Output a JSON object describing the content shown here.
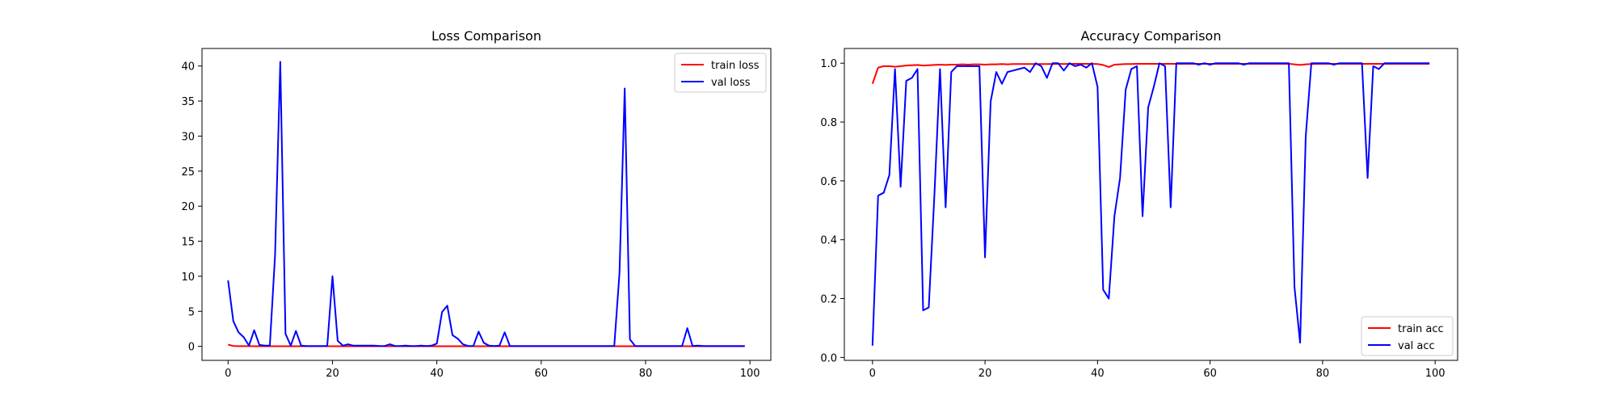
{
  "chart_data": [
    {
      "type": "line",
      "title": "Loss Comparison",
      "xlabel": "",
      "ylabel": "",
      "xlim": [
        -5,
        104
      ],
      "ylim": [
        -2,
        42.5
      ],
      "xticks": [
        0,
        20,
        40,
        60,
        80,
        100
      ],
      "yticks": [
        0,
        5,
        10,
        15,
        20,
        25,
        30,
        35,
        40
      ],
      "legend": "top-right",
      "grid": false,
      "series": [
        {
          "name": "train loss",
          "color": "#ff0000",
          "x": [
            0,
            1,
            2,
            3,
            4,
            5,
            6,
            7,
            8,
            9,
            10,
            11,
            12,
            13,
            14,
            15,
            16,
            17,
            18,
            19,
            20,
            21,
            22,
            23,
            24,
            25,
            26,
            27,
            28,
            29,
            30,
            31,
            32,
            33,
            34,
            35,
            36,
            37,
            38,
            39,
            40,
            41,
            42,
            43,
            44,
            45,
            46,
            47,
            48,
            49,
            50,
            51,
            52,
            53,
            54,
            55,
            56,
            57,
            58,
            59,
            60,
            61,
            62,
            63,
            64,
            65,
            66,
            67,
            68,
            69,
            70,
            71,
            72,
            73,
            74,
            75,
            76,
            77,
            78,
            79,
            80,
            81,
            82,
            83,
            84,
            85,
            86,
            87,
            88,
            89,
            90,
            91,
            92,
            93,
            94,
            95,
            96,
            97,
            98,
            99
          ],
          "y": [
            0.25,
            0.05,
            0.03,
            0.03,
            0.03,
            0.02,
            0.02,
            0.02,
            0.02,
            0.02,
            0.02,
            0.02,
            0.02,
            0.02,
            0.02,
            0.02,
            0.02,
            0.02,
            0.02,
            0.02,
            0.02,
            0.02,
            0.02,
            0.02,
            0.02,
            0.02,
            0.02,
            0.02,
            0.02,
            0.02,
            0.02,
            0.02,
            0.02,
            0.02,
            0.02,
            0.02,
            0.02,
            0.02,
            0.02,
            0.02,
            0.02,
            0.02,
            0.02,
            0.02,
            0.02,
            0.02,
            0.02,
            0.02,
            0.02,
            0.02,
            0.02,
            0.02,
            0.02,
            0.02,
            0.02,
            0.02,
            0.02,
            0.02,
            0.02,
            0.02,
            0.02,
            0.02,
            0.02,
            0.02,
            0.02,
            0.02,
            0.02,
            0.02,
            0.02,
            0.02,
            0.02,
            0.02,
            0.02,
            0.02,
            0.02,
            0.02,
            0.02,
            0.02,
            0.02,
            0.02,
            0.02,
            0.02,
            0.02,
            0.02,
            0.02,
            0.02,
            0.02,
            0.02,
            0.02,
            0.02,
            0.02,
            0.02,
            0.02,
            0.02,
            0.02,
            0.02,
            0.02,
            0.02,
            0.02,
            0.02
          ]
        },
        {
          "name": "val loss",
          "color": "#0000ff",
          "x": [
            0,
            1,
            2,
            3,
            4,
            5,
            6,
            7,
            8,
            9,
            10,
            11,
            12,
            13,
            14,
            15,
            16,
            17,
            18,
            19,
            20,
            21,
            22,
            23,
            24,
            25,
            26,
            27,
            28,
            29,
            30,
            31,
            32,
            33,
            34,
            35,
            36,
            37,
            38,
            39,
            40,
            41,
            42,
            43,
            44,
            45,
            46,
            47,
            48,
            49,
            50,
            51,
            52,
            53,
            54,
            55,
            56,
            57,
            58,
            59,
            60,
            61,
            62,
            63,
            64,
            65,
            66,
            67,
            68,
            69,
            70,
            71,
            72,
            73,
            74,
            75,
            76,
            77,
            78,
            79,
            80,
            81,
            82,
            83,
            84,
            85,
            86,
            87,
            88,
            89,
            90,
            91,
            92,
            93,
            94,
            95,
            96,
            97,
            98,
            99
          ],
          "y": [
            9.4,
            3.6,
            2.0,
            1.3,
            0.1,
            2.3,
            0.2,
            0.1,
            0.1,
            13.0,
            40.6,
            1.8,
            0.1,
            2.2,
            0.1,
            0.05,
            0.05,
            0.05,
            0.05,
            0.05,
            10.0,
            0.8,
            0.1,
            0.3,
            0.1,
            0.1,
            0.1,
            0.1,
            0.1,
            0.05,
            0.05,
            0.3,
            0.05,
            0.05,
            0.1,
            0.05,
            0.05,
            0.1,
            0.05,
            0.1,
            0.4,
            4.9,
            5.8,
            1.6,
            1.1,
            0.3,
            0.05,
            0.05,
            2.1,
            0.5,
            0.1,
            0.05,
            0.1,
            2.0,
            0.05,
            0.05,
            0.05,
            0.05,
            0.05,
            0.05,
            0.05,
            0.05,
            0.05,
            0.05,
            0.05,
            0.05,
            0.05,
            0.05,
            0.05,
            0.05,
            0.05,
            0.05,
            0.05,
            0.05,
            0.05,
            10.5,
            36.8,
            1.0,
            0.05,
            0.05,
            0.05,
            0.05,
            0.05,
            0.05,
            0.05,
            0.05,
            0.05,
            0.05,
            2.6,
            0.05,
            0.1,
            0.05,
            0.05,
            0.05,
            0.05,
            0.05,
            0.05,
            0.05,
            0.05,
            0.05
          ]
        }
      ]
    },
    {
      "type": "line",
      "title": "Accuracy Comparison",
      "xlabel": "",
      "ylabel": "",
      "xlim": [
        -5,
        104
      ],
      "ylim": [
        -0.01,
        1.05
      ],
      "xticks": [
        0,
        20,
        40,
        60,
        80,
        100
      ],
      "yticks": [
        0.0,
        0.2,
        0.4,
        0.6,
        0.8,
        1.0
      ],
      "legend": "bottom-right",
      "grid": false,
      "series": [
        {
          "name": "train acc",
          "color": "#ff0000",
          "x": [
            0,
            1,
            2,
            3,
            4,
            5,
            6,
            7,
            8,
            9,
            10,
            11,
            12,
            13,
            14,
            15,
            16,
            17,
            18,
            19,
            20,
            21,
            22,
            23,
            24,
            25,
            26,
            27,
            28,
            29,
            30,
            31,
            32,
            33,
            34,
            35,
            36,
            37,
            38,
            39,
            40,
            41,
            42,
            43,
            44,
            45,
            46,
            47,
            48,
            49,
            50,
            51,
            52,
            53,
            54,
            55,
            56,
            57,
            58,
            59,
            60,
            61,
            62,
            63,
            64,
            65,
            66,
            67,
            68,
            69,
            70,
            71,
            72,
            73,
            74,
            75,
            76,
            77,
            78,
            79,
            80,
            81,
            82,
            83,
            84,
            85,
            86,
            87,
            88,
            89,
            90,
            91,
            92,
            93,
            94,
            95,
            96,
            97,
            98,
            99
          ],
          "y": [
            0.93,
            0.985,
            0.99,
            0.99,
            0.988,
            0.99,
            0.992,
            0.993,
            0.994,
            0.992,
            0.993,
            0.994,
            0.995,
            0.994,
            0.995,
            0.995,
            0.996,
            0.995,
            0.996,
            0.996,
            0.995,
            0.996,
            0.996,
            0.997,
            0.996,
            0.997,
            0.997,
            0.997,
            0.997,
            0.997,
            0.997,
            0.997,
            0.997,
            0.998,
            0.997,
            0.998,
            0.998,
            0.998,
            0.998,
            0.998,
            0.997,
            0.994,
            0.987,
            0.995,
            0.996,
            0.997,
            0.997,
            0.998,
            0.998,
            0.998,
            0.998,
            0.998,
            0.998,
            0.998,
            0.998,
            0.998,
            0.998,
            0.998,
            0.998,
            0.998,
            0.998,
            0.998,
            0.998,
            0.998,
            0.998,
            0.998,
            0.998,
            0.998,
            0.998,
            0.998,
            0.998,
            0.998,
            0.998,
            0.998,
            0.998,
            0.996,
            0.994,
            0.996,
            0.997,
            0.998,
            0.998,
            0.998,
            0.998,
            0.998,
            0.998,
            0.998,
            0.998,
            0.998,
            0.998,
            0.998,
            0.998,
            0.998,
            0.998,
            0.998,
            0.998,
            0.998,
            0.998,
            0.998,
            0.998,
            0.998
          ]
        },
        {
          "name": "val acc",
          "color": "#0000ff",
          "x": [
            0,
            1,
            2,
            3,
            4,
            5,
            6,
            7,
            8,
            9,
            10,
            11,
            12,
            13,
            14,
            15,
            16,
            17,
            18,
            19,
            20,
            21,
            22,
            23,
            24,
            25,
            26,
            27,
            28,
            29,
            30,
            31,
            32,
            33,
            34,
            35,
            36,
            37,
            38,
            39,
            40,
            41,
            42,
            43,
            44,
            45,
            46,
            47,
            48,
            49,
            50,
            51,
            52,
            53,
            54,
            55,
            56,
            57,
            58,
            59,
            60,
            61,
            62,
            63,
            64,
            65,
            66,
            67,
            68,
            69,
            70,
            71,
            72,
            73,
            74,
            75,
            76,
            77,
            78,
            79,
            80,
            81,
            82,
            83,
            84,
            85,
            86,
            87,
            88,
            89,
            90,
            91,
            92,
            93,
            94,
            95,
            96,
            97,
            98,
            99
          ],
          "y": [
            0.04,
            0.55,
            0.56,
            0.62,
            0.98,
            0.58,
            0.94,
            0.95,
            0.98,
            0.16,
            0.17,
            0.55,
            0.98,
            0.51,
            0.97,
            0.99,
            0.99,
            0.99,
            0.99,
            0.99,
            0.34,
            0.87,
            0.97,
            0.93,
            0.97,
            0.975,
            0.98,
            0.985,
            0.97,
            1.0,
            0.99,
            0.95,
            1.0,
            1.0,
            0.975,
            1.0,
            0.99,
            0.995,
            0.985,
            1.0,
            0.92,
            0.23,
            0.2,
            0.48,
            0.61,
            0.91,
            0.98,
            0.99,
            0.48,
            0.85,
            0.92,
            1.0,
            0.99,
            0.51,
            1.0,
            1.0,
            1.0,
            1.0,
            0.995,
            1.0,
            0.995,
            1.0,
            1.0,
            1.0,
            1.0,
            1.0,
            0.995,
            1.0,
            1.0,
            1.0,
            1.0,
            1.0,
            1.0,
            1.0,
            1.0,
            0.24,
            0.05,
            0.75,
            1.0,
            1.0,
            1.0,
            1.0,
            0.995,
            1.0,
            1.0,
            1.0,
            1.0,
            1.0,
            0.61,
            0.99,
            0.98,
            1.0,
            1.0,
            1.0,
            1.0,
            1.0,
            1.0,
            1.0,
            1.0,
            1.0
          ]
        }
      ]
    }
  ]
}
